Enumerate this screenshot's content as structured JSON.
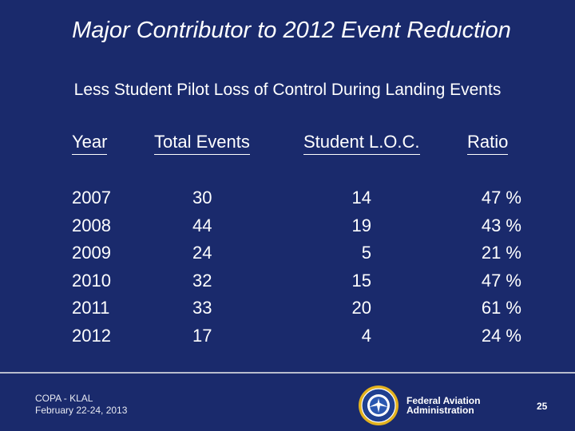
{
  "title": "Major Contributor to 2012 Event Reduction",
  "subtitle": "Less Student Pilot Loss of Control During Landing Events",
  "headers": {
    "year": "Year",
    "total": "Total Events",
    "student": "Student L.O.C.",
    "ratio": "Ratio"
  },
  "years": [
    "2007",
    "2008",
    "2009",
    "2010",
    "2011",
    "2012"
  ],
  "total_events": [
    "30",
    "44",
    "24",
    "32",
    "33",
    "17"
  ],
  "student_loc": [
    "14",
    "19",
    "5",
    "15",
    "20",
    "4"
  ],
  "ratio": [
    "47 %",
    "43 %",
    "21 %",
    "47 %",
    "61 %",
    "24 %"
  ],
  "footer": {
    "event": "COPA - KLAL",
    "dates": "February 22-24, 2013",
    "agency_line1": "Federal Aviation",
    "agency_line2": "Administration",
    "page_number": "25",
    "seal_icon": "faa-seal-icon"
  },
  "colors": {
    "background": "#1a2a6c",
    "text": "#ffffff",
    "seal_ring": "#e3b21e"
  }
}
